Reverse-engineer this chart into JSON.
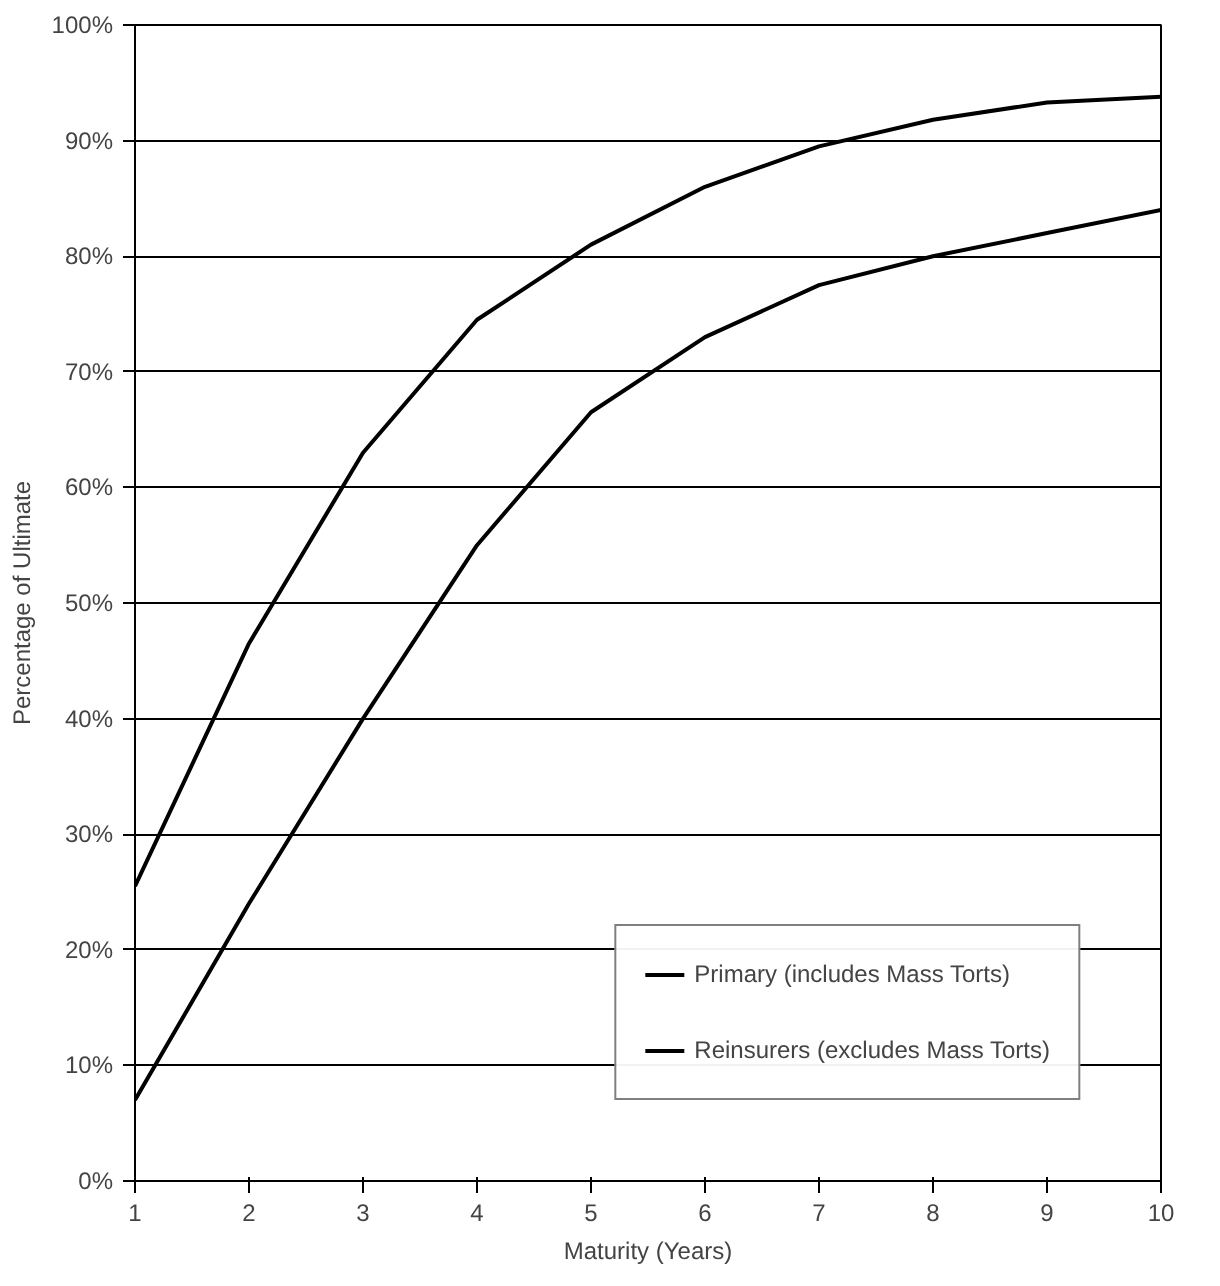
{
  "chart_data": {
    "type": "line",
    "xlabel": "Maturity (Years)",
    "ylabel": "Percentage of Ultimate",
    "x": [
      1,
      2,
      3,
      4,
      5,
      6,
      7,
      8,
      9,
      10
    ],
    "series": [
      {
        "name": "Primary (includes Mass Torts)",
        "color": "#000000",
        "values": [
          25.5,
          46.5,
          63,
          74.5,
          81,
          86,
          89.5,
          91.8,
          93.3,
          93.8
        ]
      },
      {
        "name": "Reinsurers (excludes Mass Torts)",
        "color": "#000000",
        "values": [
          7,
          24,
          40,
          55,
          66.5,
          73,
          77.5,
          80,
          82,
          84
        ]
      }
    ],
    "xlim": [
      1,
      10
    ],
    "xticks": [
      1,
      2,
      3,
      4,
      5,
      6,
      7,
      8,
      9,
      10
    ],
    "ylim": [
      0,
      100
    ],
    "yticks": [
      {
        "value": 0,
        "label": "0%"
      },
      {
        "value": 10,
        "label": "10%"
      },
      {
        "value": 20,
        "label": "20%"
      },
      {
        "value": 30,
        "label": "30%"
      },
      {
        "value": 40,
        "label": "40%"
      },
      {
        "value": 50,
        "label": "50%"
      },
      {
        "value": 60,
        "label": "60%"
      },
      {
        "value": 70,
        "label": "70%"
      },
      {
        "value": 80,
        "label": "80%"
      },
      {
        "value": 90,
        "label": "90%"
      },
      {
        "value": 100,
        "label": "100%"
      }
    ],
    "grid": "y",
    "legend": "bottom right",
    "marker": "none",
    "line_style": "solid"
  }
}
